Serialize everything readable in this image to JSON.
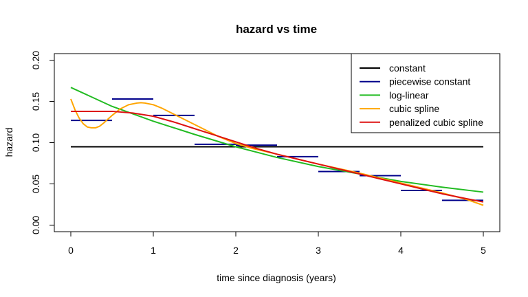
{
  "chart_data": {
    "type": "line",
    "title": "hazard vs time",
    "xlabel": "time since diagnosis (years)",
    "ylabel": "hazard",
    "xlim": [
      -0.2,
      5.2
    ],
    "ylim": [
      -0.008,
      0.208
    ],
    "xticks": [
      "0",
      "1",
      "2",
      "3",
      "4",
      "5"
    ],
    "yticks": [
      "0.00",
      "0.05",
      "0.10",
      "0.15",
      "0.20"
    ],
    "grid": false,
    "legend_position": "top-right",
    "series": [
      {
        "name": "constant",
        "color": "#000000",
        "kind": "line",
        "points": [
          [
            0,
            0.095
          ],
          [
            5,
            0.095
          ]
        ]
      },
      {
        "name": "piecewise constant",
        "color": "#00008b",
        "kind": "steps",
        "segments": [
          [
            0.0,
            0.5,
            0.127
          ],
          [
            0.5,
            1.0,
            0.153
          ],
          [
            1.0,
            1.5,
            0.133
          ],
          [
            1.5,
            2.0,
            0.098
          ],
          [
            2.0,
            2.5,
            0.097
          ],
          [
            2.5,
            3.0,
            0.083
          ],
          [
            3.0,
            3.5,
            0.065
          ],
          [
            3.5,
            4.0,
            0.06
          ],
          [
            4.0,
            4.5,
            0.042
          ],
          [
            4.5,
            5.0,
            0.03
          ]
        ]
      },
      {
        "name": "log-linear",
        "color": "#22bb22",
        "kind": "line",
        "points": [
          [
            0,
            0.167
          ],
          [
            0.5,
            0.144
          ],
          [
            1,
            0.126
          ],
          [
            1.5,
            0.11
          ],
          [
            2,
            0.095
          ],
          [
            2.5,
            0.082
          ],
          [
            3,
            0.071
          ],
          [
            3.5,
            0.062
          ],
          [
            4,
            0.053
          ],
          [
            4.5,
            0.046
          ],
          [
            5,
            0.04
          ]
        ]
      },
      {
        "name": "cubic spline",
        "color": "#ffa500",
        "kind": "line",
        "points": [
          [
            0,
            0.153
          ],
          [
            0.05,
            0.14
          ],
          [
            0.1,
            0.13
          ],
          [
            0.15,
            0.123
          ],
          [
            0.2,
            0.119
          ],
          [
            0.25,
            0.118
          ],
          [
            0.3,
            0.118
          ],
          [
            0.35,
            0.12
          ],
          [
            0.4,
            0.124
          ],
          [
            0.5,
            0.133
          ],
          [
            0.6,
            0.141
          ],
          [
            0.7,
            0.146
          ],
          [
            0.8,
            0.148
          ],
          [
            0.85,
            0.1485
          ],
          [
            0.9,
            0.148
          ],
          [
            1.0,
            0.146
          ],
          [
            1.1,
            0.142
          ],
          [
            1.2,
            0.137
          ],
          [
            1.4,
            0.127
          ],
          [
            1.6,
            0.117
          ],
          [
            1.8,
            0.107
          ],
          [
            2.0,
            0.099
          ],
          [
            2.2,
            0.093
          ],
          [
            2.5,
            0.086
          ],
          [
            3.0,
            0.074
          ],
          [
            3.5,
            0.063
          ],
          [
            4.0,
            0.051
          ],
          [
            4.5,
            0.039
          ],
          [
            4.8,
            0.031
          ],
          [
            5.0,
            0.024
          ]
        ]
      },
      {
        "name": "penalized cubic spline",
        "color": "#dd1111",
        "kind": "line",
        "points": [
          [
            0,
            0.138
          ],
          [
            0.25,
            0.138
          ],
          [
            0.5,
            0.138
          ],
          [
            0.75,
            0.136
          ],
          [
            1.0,
            0.132
          ],
          [
            1.25,
            0.125
          ],
          [
            1.5,
            0.117
          ],
          [
            1.75,
            0.109
          ],
          [
            2.0,
            0.101
          ],
          [
            2.25,
            0.093
          ],
          [
            2.5,
            0.086
          ],
          [
            2.75,
            0.08
          ],
          [
            3.0,
            0.074
          ],
          [
            3.25,
            0.068
          ],
          [
            3.5,
            0.062
          ],
          [
            3.75,
            0.056
          ],
          [
            4.0,
            0.05
          ],
          [
            4.25,
            0.044
          ],
          [
            4.5,
            0.038
          ],
          [
            4.75,
            0.033
          ],
          [
            5.0,
            0.028
          ]
        ]
      }
    ]
  }
}
